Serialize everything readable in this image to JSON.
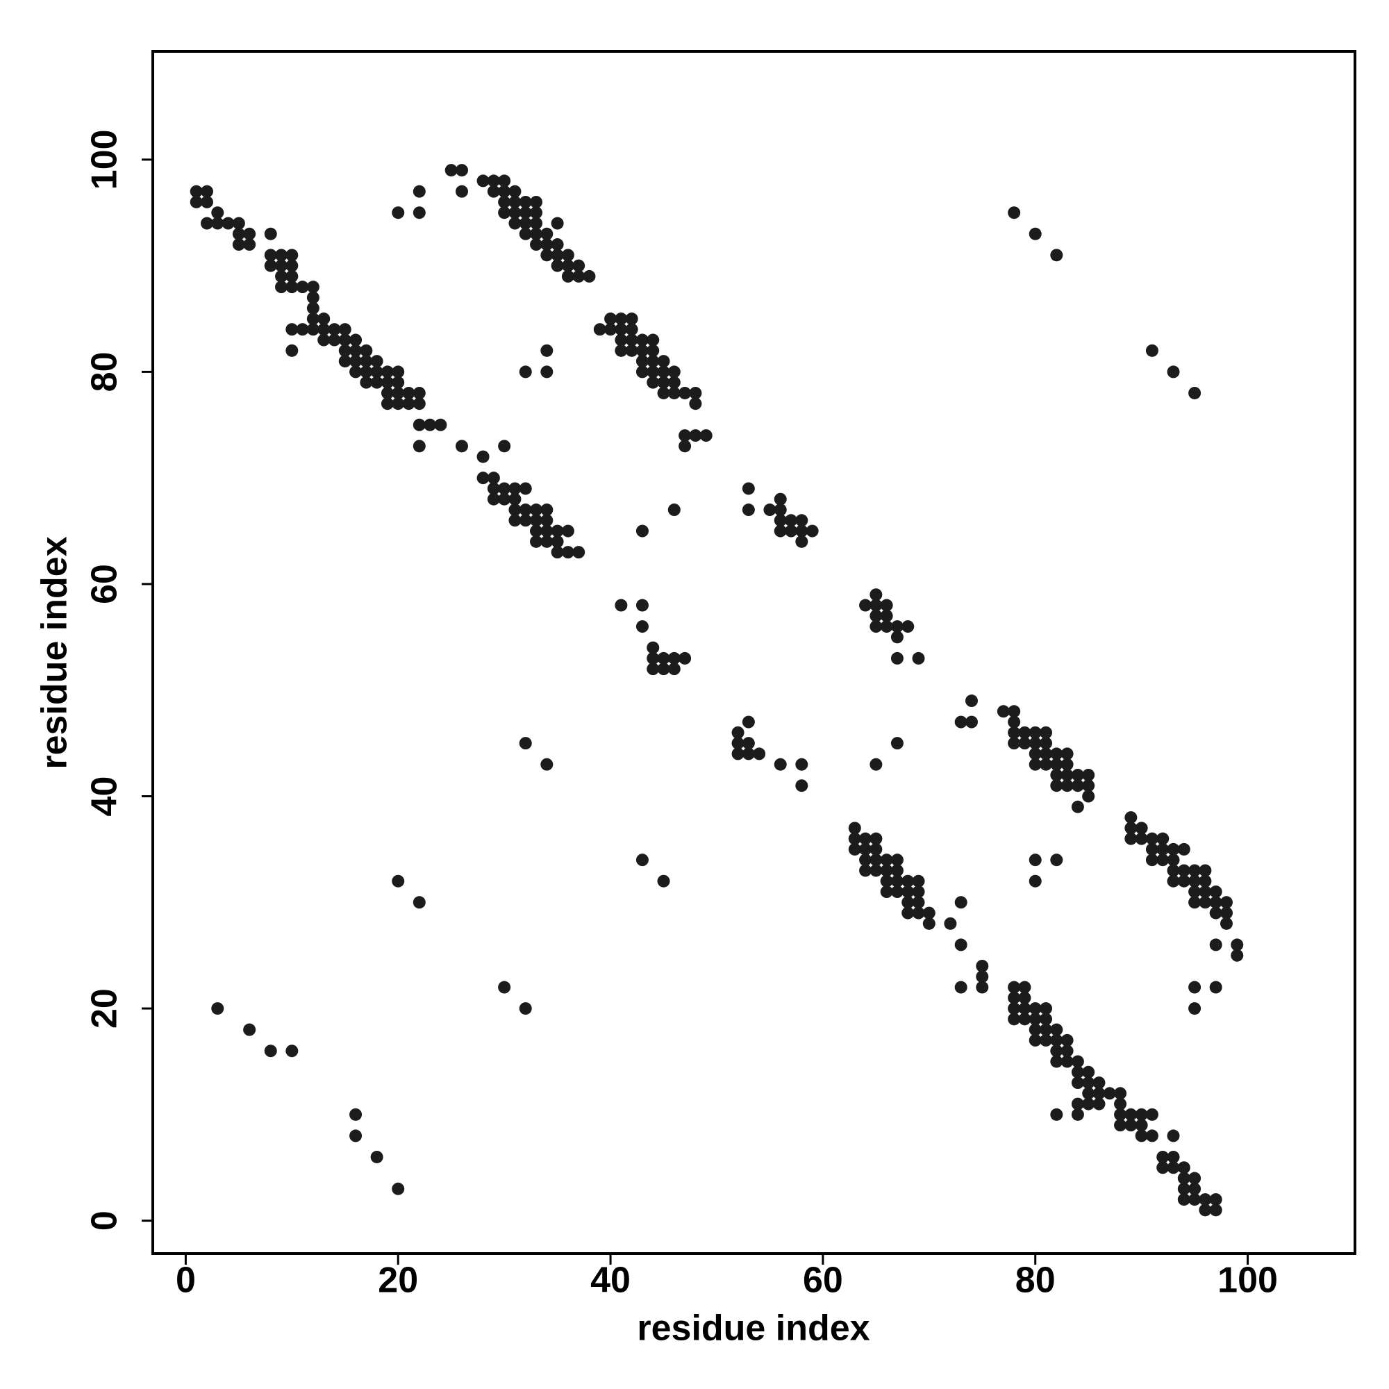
{
  "chart_data": {
    "type": "scatter",
    "xlabel": "residue index",
    "ylabel": "residue index",
    "color": "#1c1c1c",
    "xlim": [
      -3.1,
      110.1
    ],
    "ylim": [
      -3.1,
      110.2
    ],
    "xticks": [
      0,
      20,
      40,
      60,
      80,
      100
    ],
    "yticks": [
      0,
      20,
      40,
      60,
      80,
      100
    ],
    "x": [
      1,
      2,
      1,
      2,
      3,
      2,
      3,
      4,
      5,
      5,
      6,
      5,
      6,
      8,
      8,
      9,
      10,
      8,
      9,
      10,
      9,
      10,
      9,
      10,
      11,
      12,
      12,
      12,
      10,
      11,
      12,
      13,
      12,
      13,
      14,
      15,
      13,
      14,
      15,
      16,
      15,
      16,
      17,
      10,
      15,
      16,
      17,
      18,
      16,
      17,
      18,
      19,
      20,
      17,
      18,
      19,
      20,
      19,
      20,
      21,
      22,
      19,
      20,
      21,
      22,
      22,
      23,
      24,
      22,
      26,
      25,
      26,
      26,
      28,
      29,
      30,
      29,
      30,
      31,
      30,
      31,
      32,
      33,
      30,
      31,
      32,
      33,
      31,
      32,
      33,
      35,
      32,
      33,
      34,
      33,
      34,
      35,
      34,
      35,
      36,
      35,
      36,
      37,
      36,
      37,
      38,
      20,
      22,
      22,
      40,
      41,
      42,
      39,
      40,
      41,
      42,
      41,
      42,
      43,
      44,
      41,
      42,
      43,
      44,
      43,
      44,
      45,
      43,
      44,
      45,
      46,
      44,
      45,
      46,
      45,
      46,
      47,
      48,
      48,
      47,
      48,
      49,
      47,
      34,
      32,
      34,
      28,
      30,
      28,
      29,
      29,
      30,
      31,
      32,
      29,
      30,
      31,
      31,
      32,
      33,
      34,
      31,
      32,
      33,
      34,
      33,
      34,
      35,
      36,
      33,
      34,
      35,
      35,
      36,
      37,
      46,
      43,
      53,
      53,
      55,
      56,
      56,
      56,
      57,
      58,
      56,
      57,
      58,
      59,
      58,
      41,
      43,
      43,
      44,
      44,
      45,
      46,
      47,
      44,
      45,
      46,
      52,
      53,
      52,
      53,
      52,
      53,
      54,
      56,
      58,
      58,
      32,
      34,
      64,
      65,
      65,
      66,
      65,
      66,
      65,
      66,
      67,
      68,
      67,
      67,
      69,
      74,
      73,
      74,
      77,
      78,
      78,
      78,
      79,
      80,
      81,
      78,
      79,
      80,
      81,
      80,
      81,
      82,
      83,
      80,
      81,
      82,
      83,
      82,
      83,
      84,
      85,
      82,
      83,
      84,
      85,
      85,
      84,
      67,
      65,
      63,
      63,
      64,
      65,
      63,
      64,
      65,
      64,
      65,
      66,
      67,
      64,
      65,
      66,
      67,
      66,
      67,
      68,
      69,
      66,
      67,
      68,
      69,
      68,
      69,
      68,
      69,
      70,
      70,
      72,
      89,
      89,
      90,
      89,
      90,
      91,
      92,
      91,
      92,
      93,
      94,
      91,
      92,
      93,
      93,
      94,
      95,
      96,
      93,
      94,
      95,
      96,
      95,
      96,
      97,
      95,
      96,
      97,
      98,
      97,
      98,
      98,
      97,
      99,
      99,
      80,
      82,
      80,
      95,
      97,
      95,
      73,
      73,
      75,
      75,
      73,
      75,
      78,
      79,
      78,
      79,
      78,
      79,
      80,
      81,
      78,
      79,
      80,
      81,
      80,
      81,
      82,
      80,
      81,
      82,
      83,
      82,
      83,
      84,
      82,
      83,
      84,
      85,
      84,
      85,
      86,
      85,
      86,
      87,
      88,
      84,
      85,
      86,
      82,
      84,
      88,
      88,
      89,
      90,
      91,
      88,
      89,
      90,
      91,
      90,
      93,
      92,
      93,
      92,
      93,
      94,
      94,
      95,
      94,
      95,
      94,
      95,
      96,
      97,
      96,
      97,
      91,
      93,
      95,
      78,
      80,
      82,
      20,
      22,
      43,
      45,
      30,
      32,
      3,
      6,
      8,
      10,
      16,
      16,
      18,
      20
    ],
    "values": [
      97,
      97,
      96,
      96,
      95,
      94,
      94,
      94,
      94,
      93,
      93,
      92,
      92,
      93,
      91,
      91,
      91,
      90,
      90,
      90,
      89,
      89,
      88,
      88,
      88,
      88,
      87,
      86,
      84,
      84,
      85,
      85,
      84,
      84,
      84,
      84,
      83,
      83,
      83,
      83,
      82,
      82,
      82,
      82,
      81,
      81,
      81,
      81,
      80,
      80,
      80,
      80,
      80,
      79,
      79,
      79,
      79,
      78,
      78,
      78,
      78,
      77,
      77,
      77,
      77,
      75,
      75,
      75,
      73,
      73,
      99,
      99,
      97,
      98,
      98,
      98,
      97,
      97,
      97,
      96,
      96,
      96,
      96,
      95,
      95,
      95,
      95,
      94,
      94,
      94,
      94,
      93,
      93,
      93,
      92,
      92,
      92,
      91,
      91,
      91,
      90,
      90,
      90,
      89,
      89,
      89,
      95,
      97,
      95,
      85,
      85,
      85,
      84,
      84,
      84,
      84,
      83,
      83,
      83,
      83,
      82,
      82,
      82,
      82,
      81,
      81,
      81,
      80,
      80,
      80,
      80,
      79,
      79,
      79,
      78,
      78,
      78,
      78,
      77,
      74,
      74,
      74,
      73,
      82,
      80,
      80,
      72,
      73,
      70,
      70,
      69,
      69,
      69,
      69,
      68,
      68,
      68,
      67,
      67,
      67,
      67,
      66,
      66,
      66,
      66,
      65,
      65,
      65,
      65,
      64,
      64,
      64,
      63,
      63,
      63,
      67,
      65,
      69,
      67,
      67,
      68,
      67,
      66,
      66,
      66,
      65,
      65,
      65,
      65,
      64,
      58,
      58,
      56,
      54,
      53,
      53,
      53,
      53,
      52,
      52,
      52,
      46,
      47,
      45,
      45,
      44,
      44,
      44,
      43,
      43,
      41,
      45,
      43,
      58,
      59,
      58,
      58,
      57,
      57,
      56,
      56,
      56,
      56,
      55,
      53,
      53,
      49,
      47,
      47,
      48,
      48,
      47,
      46,
      46,
      46,
      46,
      45,
      45,
      45,
      45,
      44,
      44,
      44,
      44,
      43,
      43,
      43,
      43,
      42,
      42,
      42,
      42,
      41,
      41,
      41,
      41,
      40,
      39,
      45,
      43,
      37,
      36,
      36,
      36,
      35,
      35,
      35,
      34,
      34,
      34,
      34,
      33,
      33,
      33,
      33,
      32,
      32,
      32,
      32,
      31,
      31,
      31,
      31,
      30,
      30,
      29,
      29,
      29,
      28,
      28,
      38,
      37,
      37,
      36,
      36,
      36,
      36,
      35,
      35,
      35,
      35,
      34,
      34,
      34,
      33,
      33,
      33,
      33,
      32,
      32,
      32,
      32,
      31,
      31,
      31,
      30,
      30,
      30,
      30,
      29,
      29,
      28,
      26,
      26,
      25,
      34,
      34,
      32,
      22,
      22,
      20,
      30,
      26,
      24,
      23,
      22,
      22,
      22,
      22,
      21,
      21,
      20,
      20,
      20,
      20,
      19,
      19,
      19,
      19,
      18,
      18,
      18,
      17,
      17,
      17,
      17,
      16,
      16,
      15,
      15,
      15,
      14,
      14,
      13,
      13,
      13,
      12,
      12,
      12,
      12,
      11,
      11,
      11,
      10,
      10,
      11,
      10,
      10,
      10,
      10,
      9,
      9,
      9,
      8,
      8,
      8,
      6,
      6,
      5,
      5,
      5,
      4,
      4,
      3,
      3,
      2,
      2,
      2,
      2,
      1,
      1,
      82,
      80,
      78,
      95,
      93,
      91,
      32,
      30,
      34,
      32,
      22,
      20,
      20,
      18,
      16,
      16,
      10,
      8,
      6,
      3
    ]
  }
}
